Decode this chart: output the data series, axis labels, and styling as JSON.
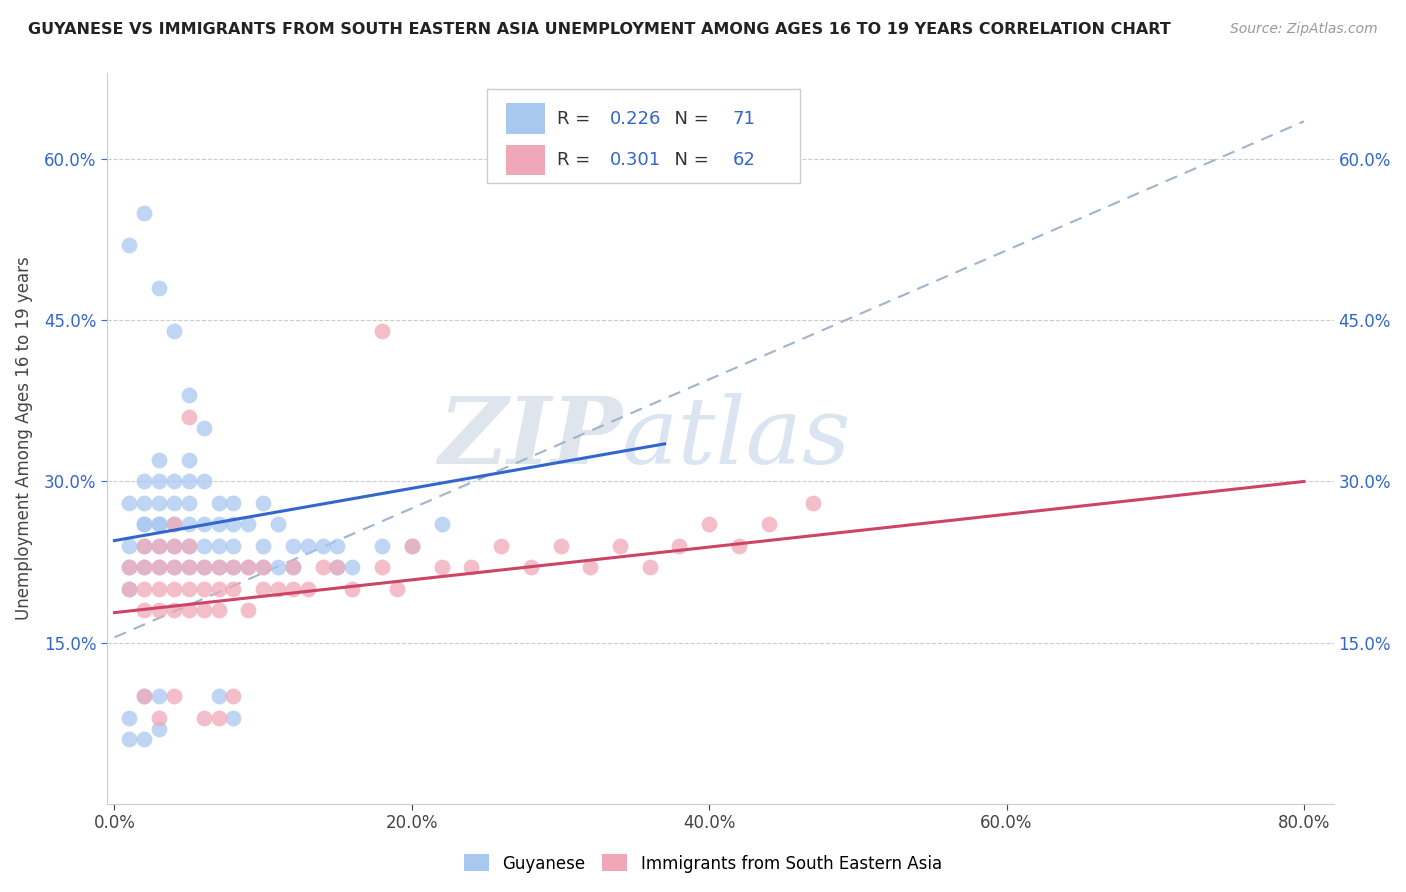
{
  "title": "GUYANESE VS IMMIGRANTS FROM SOUTH EASTERN ASIA UNEMPLOYMENT AMONG AGES 16 TO 19 YEARS CORRELATION CHART",
  "source": "Source: ZipAtlas.com",
  "ylabel": "Unemployment Among Ages 16 to 19 years",
  "x_ticks": [
    0.0,
    0.2,
    0.4,
    0.6,
    0.8
  ],
  "x_tick_labels": [
    "0.0%",
    "20.0%",
    "40.0%",
    "60.0%",
    "80.0%"
  ],
  "y_ticks": [
    0.15,
    0.3,
    0.45,
    0.6
  ],
  "y_tick_labels": [
    "15.0%",
    "30.0%",
    "45.0%",
    "60.0%"
  ],
  "xlim": [
    -0.005,
    0.82
  ],
  "ylim": [
    0.0,
    0.68
  ],
  "R_blue": "0.226",
  "N_blue": "71",
  "R_pink": "0.301",
  "N_pink": "62",
  "blue_scatter_color": "#a8c8f0",
  "pink_scatter_color": "#f0a8b8",
  "trend_blue_color": "#3366cc",
  "trend_pink_color": "#cc4466",
  "trend_dashed_color": "#a0b4cc",
  "legend_label_blue": "Guyanese",
  "legend_label_pink": "Immigrants from South Eastern Asia",
  "blue_line_x0": 0.0,
  "blue_line_y0": 0.245,
  "blue_line_x1": 0.37,
  "blue_line_y1": 0.335,
  "pink_line_x0": 0.0,
  "pink_line_y0": 0.178,
  "pink_line_x1": 0.8,
  "pink_line_y1": 0.3,
  "dash_line_x0": 0.0,
  "dash_line_y0": 0.155,
  "dash_line_x1": 0.8,
  "dash_line_y1": 0.635,
  "blue_x": [
    0.01,
    0.01,
    0.01,
    0.01,
    0.02,
    0.02,
    0.02,
    0.02,
    0.02,
    0.02,
    0.03,
    0.03,
    0.03,
    0.03,
    0.03,
    0.03,
    0.03,
    0.04,
    0.04,
    0.04,
    0.04,
    0.04,
    0.05,
    0.05,
    0.05,
    0.05,
    0.05,
    0.05,
    0.06,
    0.06,
    0.06,
    0.06,
    0.07,
    0.07,
    0.07,
    0.07,
    0.08,
    0.08,
    0.08,
    0.08,
    0.09,
    0.09,
    0.1,
    0.1,
    0.1,
    0.11,
    0.11,
    0.12,
    0.12,
    0.13,
    0.14,
    0.15,
    0.15,
    0.16,
    0.18,
    0.2,
    0.22,
    0.01,
    0.02,
    0.03,
    0.04,
    0.05,
    0.06,
    0.07,
    0.08,
    0.01,
    0.02,
    0.03,
    0.01,
    0.02,
    0.03
  ],
  "blue_y": [
    0.2,
    0.22,
    0.24,
    0.28,
    0.22,
    0.24,
    0.26,
    0.26,
    0.28,
    0.3,
    0.22,
    0.24,
    0.26,
    0.26,
    0.28,
    0.3,
    0.32,
    0.22,
    0.24,
    0.26,
    0.28,
    0.3,
    0.22,
    0.24,
    0.26,
    0.28,
    0.3,
    0.32,
    0.22,
    0.24,
    0.26,
    0.3,
    0.22,
    0.24,
    0.26,
    0.28,
    0.22,
    0.24,
    0.26,
    0.28,
    0.22,
    0.26,
    0.22,
    0.24,
    0.28,
    0.22,
    0.26,
    0.22,
    0.24,
    0.24,
    0.24,
    0.22,
    0.24,
    0.22,
    0.24,
    0.24,
    0.26,
    0.52,
    0.55,
    0.48,
    0.44,
    0.38,
    0.35,
    0.1,
    0.08,
    0.08,
    0.1,
    0.1,
    0.06,
    0.06,
    0.07
  ],
  "pink_x": [
    0.01,
    0.01,
    0.02,
    0.02,
    0.02,
    0.02,
    0.03,
    0.03,
    0.03,
    0.03,
    0.04,
    0.04,
    0.04,
    0.04,
    0.04,
    0.05,
    0.05,
    0.05,
    0.05,
    0.06,
    0.06,
    0.06,
    0.07,
    0.07,
    0.07,
    0.08,
    0.08,
    0.09,
    0.09,
    0.1,
    0.1,
    0.11,
    0.12,
    0.12,
    0.13,
    0.14,
    0.15,
    0.16,
    0.18,
    0.19,
    0.2,
    0.22,
    0.24,
    0.26,
    0.28,
    0.3,
    0.32,
    0.34,
    0.36,
    0.38,
    0.4,
    0.42,
    0.44,
    0.47,
    0.02,
    0.03,
    0.04,
    0.05,
    0.06,
    0.07,
    0.08,
    0.18
  ],
  "pink_y": [
    0.2,
    0.22,
    0.18,
    0.2,
    0.22,
    0.24,
    0.18,
    0.2,
    0.22,
    0.24,
    0.18,
    0.2,
    0.22,
    0.24,
    0.26,
    0.18,
    0.2,
    0.22,
    0.24,
    0.18,
    0.2,
    0.22,
    0.18,
    0.2,
    0.22,
    0.2,
    0.22,
    0.18,
    0.22,
    0.2,
    0.22,
    0.2,
    0.2,
    0.22,
    0.2,
    0.22,
    0.22,
    0.2,
    0.22,
    0.2,
    0.24,
    0.22,
    0.22,
    0.24,
    0.22,
    0.24,
    0.22,
    0.24,
    0.22,
    0.24,
    0.26,
    0.24,
    0.26,
    0.28,
    0.1,
    0.08,
    0.1,
    0.36,
    0.08,
    0.08,
    0.1,
    0.44
  ]
}
